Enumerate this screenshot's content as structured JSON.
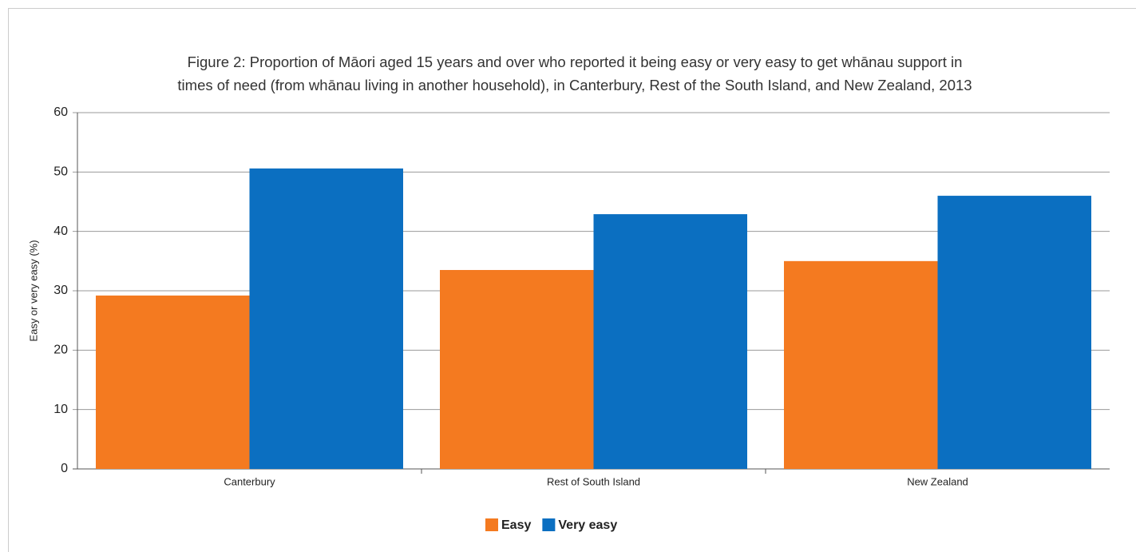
{
  "chart_data": {
    "type": "bar",
    "title": [
      "Figure 2: Proportion of Māori aged 15 years and over who reported it being easy or very easy to get whānau support in",
      "times of need (from whānau living in another household), in Canterbury, Rest of the South Island, and New Zealand, 2013"
    ],
    "y_label": "Easy or very easy (%)",
    "categories": [
      "Canterbury",
      "Rest of South Island",
      "New Zealand"
    ],
    "series": [
      {
        "name": "Easy",
        "color": "#f47a20",
        "values": [
          29.2,
          33.5,
          35.0
        ]
      },
      {
        "name": "Very easy",
        "color": "#0b6fc1",
        "values": [
          50.6,
          42.9,
          46.0
        ]
      }
    ],
    "ylim": [
      0,
      60
    ],
    "yticks": [
      0,
      10,
      20,
      30,
      40,
      50,
      60
    ],
    "grid": true,
    "legend": "bottom"
  }
}
